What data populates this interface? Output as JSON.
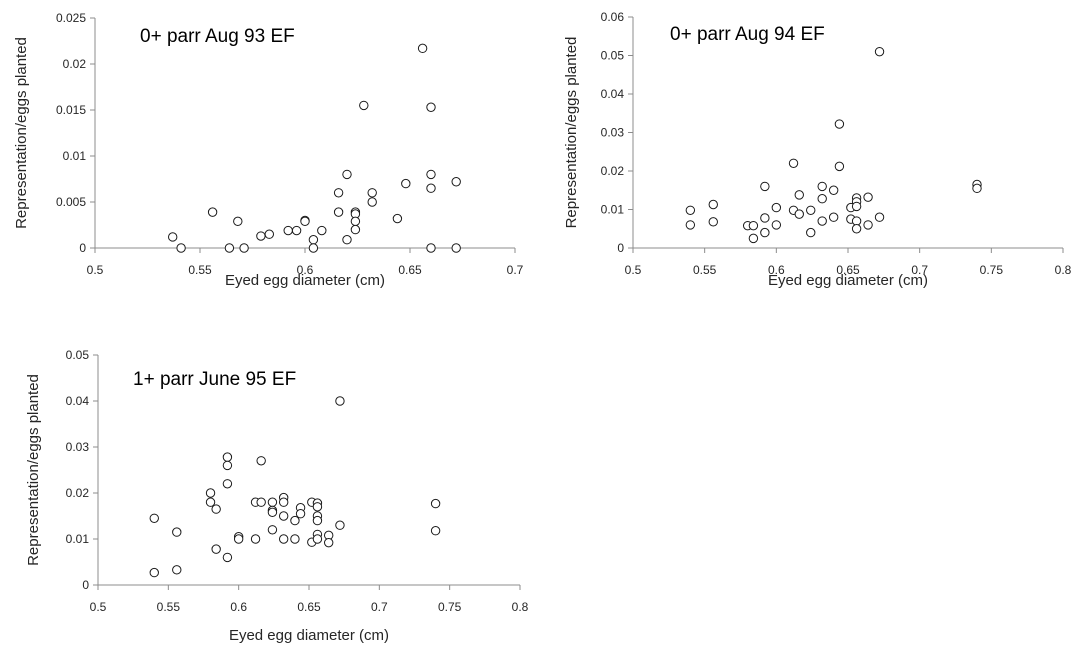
{
  "chart_data": [
    {
      "type": "scatter",
      "title": "0+ parr Aug 93 EF",
      "xlabel": "Eyed egg diameter (cm)",
      "ylabel": "Representation/eggs planted",
      "xlim": [
        0.5,
        0.7
      ],
      "ylim": [
        0,
        0.025
      ],
      "xticks": [
        "0.5",
        "0.55",
        "0.6",
        "0.65",
        "0.7"
      ],
      "yticks": [
        "0",
        "0.005",
        "0.01",
        "0.015",
        "0.02",
        "0.025"
      ],
      "grid": false,
      "points": [
        [
          0.537,
          0.0012
        ],
        [
          0.541,
          0.0
        ],
        [
          0.556,
          0.0039
        ],
        [
          0.564,
          0.0
        ],
        [
          0.568,
          0.0029
        ],
        [
          0.571,
          0.0
        ],
        [
          0.579,
          0.0013
        ],
        [
          0.583,
          0.0015
        ],
        [
          0.592,
          0.0019
        ],
        [
          0.596,
          0.0019
        ],
        [
          0.6,
          0.003
        ],
        [
          0.6,
          0.0029
        ],
        [
          0.604,
          0.0009
        ],
        [
          0.604,
          0.0
        ],
        [
          0.608,
          0.0019
        ],
        [
          0.616,
          0.006
        ],
        [
          0.616,
          0.0039
        ],
        [
          0.62,
          0.008
        ],
        [
          0.62,
          0.0009
        ],
        [
          0.624,
          0.0039
        ],
        [
          0.624,
          0.0037
        ],
        [
          0.624,
          0.0029
        ],
        [
          0.624,
          0.002
        ],
        [
          0.628,
          0.0155
        ],
        [
          0.632,
          0.006
        ],
        [
          0.632,
          0.005
        ],
        [
          0.644,
          0.0032
        ],
        [
          0.648,
          0.007
        ],
        [
          0.656,
          0.0217
        ],
        [
          0.66,
          0.0153
        ],
        [
          0.66,
          0.008
        ],
        [
          0.66,
          0.0065
        ],
        [
          0.66,
          0.0
        ],
        [
          0.672,
          0.0072
        ],
        [
          0.672,
          0.0
        ]
      ]
    },
    {
      "type": "scatter",
      "title": "0+ parr Aug 94 EF",
      "xlabel": "Eyed egg diameter (cm)",
      "ylabel": "Representation/eggs planted",
      "xlim": [
        0.5,
        0.8
      ],
      "ylim": [
        0,
        0.06
      ],
      "xticks": [
        "0.5",
        "0.55",
        "0.6",
        "0.65",
        "0.7",
        "0.75",
        "0.8"
      ],
      "yticks": [
        "0",
        "0.01",
        "0.02",
        "0.03",
        "0.04",
        "0.05",
        "0.06"
      ],
      "grid": false,
      "points": [
        [
          0.54,
          0.0098
        ],
        [
          0.54,
          0.006
        ],
        [
          0.556,
          0.0113
        ],
        [
          0.556,
          0.0068
        ],
        [
          0.58,
          0.0058
        ],
        [
          0.584,
          0.0058
        ],
        [
          0.584,
          0.0025
        ],
        [
          0.592,
          0.016
        ],
        [
          0.592,
          0.0078
        ],
        [
          0.592,
          0.004
        ],
        [
          0.6,
          0.0105
        ],
        [
          0.6,
          0.006
        ],
        [
          0.612,
          0.022
        ],
        [
          0.612,
          0.0098
        ],
        [
          0.616,
          0.0138
        ],
        [
          0.616,
          0.0088
        ],
        [
          0.624,
          0.0098
        ],
        [
          0.624,
          0.004
        ],
        [
          0.632,
          0.016
        ],
        [
          0.632,
          0.0128
        ],
        [
          0.632,
          0.007
        ],
        [
          0.64,
          0.015
        ],
        [
          0.64,
          0.008
        ],
        [
          0.644,
          0.0322
        ],
        [
          0.644,
          0.0212
        ],
        [
          0.652,
          0.0105
        ],
        [
          0.652,
          0.0075
        ],
        [
          0.656,
          0.013
        ],
        [
          0.656,
          0.012
        ],
        [
          0.656,
          0.0108
        ],
        [
          0.656,
          0.007
        ],
        [
          0.656,
          0.005
        ],
        [
          0.664,
          0.0132
        ],
        [
          0.664,
          0.006
        ],
        [
          0.672,
          0.051
        ],
        [
          0.672,
          0.008
        ],
        [
          0.74,
          0.0165
        ],
        [
          0.74,
          0.0155
        ]
      ]
    },
    {
      "type": "scatter",
      "title": "1+ parr June 95 EF",
      "xlabel": "Eyed egg diameter (cm)",
      "ylabel": "Representation/eggs planted",
      "xlim": [
        0.5,
        0.8
      ],
      "ylim": [
        0,
        0.05
      ],
      "xticks": [
        "0.5",
        "0.55",
        "0.6",
        "0.65",
        "0.7",
        "0.75",
        "0.8"
      ],
      "yticks": [
        "0",
        "0.01",
        "0.02",
        "0.03",
        "0.04",
        "0.05"
      ],
      "grid": false,
      "points": [
        [
          0.54,
          0.0145
        ],
        [
          0.54,
          0.0027
        ],
        [
          0.556,
          0.0115
        ],
        [
          0.556,
          0.0033
        ],
        [
          0.58,
          0.02
        ],
        [
          0.58,
          0.018
        ],
        [
          0.584,
          0.0165
        ],
        [
          0.584,
          0.0078
        ],
        [
          0.592,
          0.0278
        ],
        [
          0.592,
          0.026
        ],
        [
          0.592,
          0.022
        ],
        [
          0.592,
          0.006
        ],
        [
          0.6,
          0.0105
        ],
        [
          0.6,
          0.01
        ],
        [
          0.612,
          0.018
        ],
        [
          0.612,
          0.01
        ],
        [
          0.616,
          0.027
        ],
        [
          0.616,
          0.018
        ],
        [
          0.624,
          0.018
        ],
        [
          0.624,
          0.0162
        ],
        [
          0.624,
          0.0158
        ],
        [
          0.624,
          0.012
        ],
        [
          0.632,
          0.019
        ],
        [
          0.632,
          0.018
        ],
        [
          0.632,
          0.015
        ],
        [
          0.632,
          0.01
        ],
        [
          0.64,
          0.014
        ],
        [
          0.64,
          0.01
        ],
        [
          0.644,
          0.0168
        ],
        [
          0.644,
          0.0155
        ],
        [
          0.652,
          0.018
        ],
        [
          0.652,
          0.0093
        ],
        [
          0.656,
          0.0178
        ],
        [
          0.656,
          0.017
        ],
        [
          0.656,
          0.015
        ],
        [
          0.656,
          0.014
        ],
        [
          0.656,
          0.011
        ],
        [
          0.656,
          0.01
        ],
        [
          0.664,
          0.0108
        ],
        [
          0.664,
          0.0092
        ],
        [
          0.672,
          0.04
        ],
        [
          0.672,
          0.013
        ],
        [
          0.74,
          0.0177
        ],
        [
          0.74,
          0.0118
        ]
      ]
    }
  ]
}
